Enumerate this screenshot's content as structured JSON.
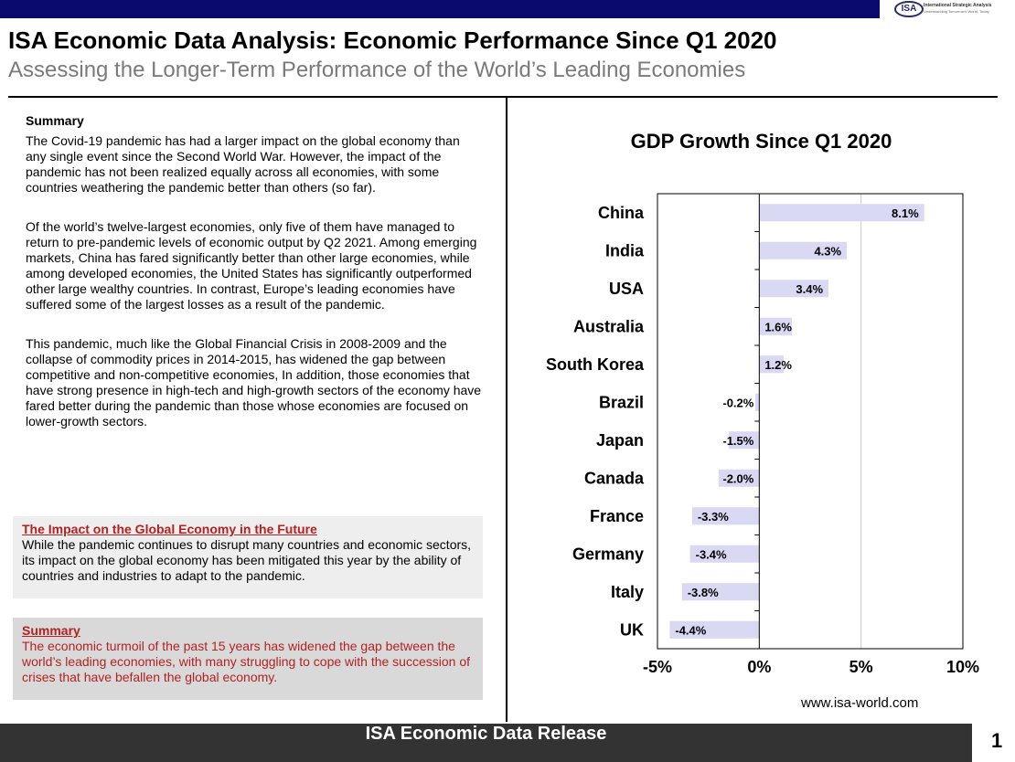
{
  "header": {
    "logo_text": "ISA",
    "logo_name": "International Strategic Analysis",
    "logo_tagline": "Understanding Tomorrow's World, Today"
  },
  "title": "ISA Economic Data Analysis: Economic Performance Since Q1 2020",
  "subtitle": "Assessing the Longer-Term Performance of the World’s Leading Economies",
  "summary": {
    "heading": "Summary",
    "paragraphs": [
      "The Covid-19 pandemic has had a larger impact on the global economy than any single event since the Second World War. However, the impact of the pandemic has not been realized equally across all economies, with some countries weathering the pandemic better than others (so far).",
      "Of the world’s twelve-largest economies, only five of them have managed to return to pre-pandemic levels of economic output by Q2 2021. Among emerging markets, China has fared significantly better than other large economies, while among developed economies, the United States has significantly outperformed other large wealthy countries. In contrast, Europe’s leading economies have suffered some of the largest losses as a result of the pandemic.",
      "This pandemic, much like the Global Financial Crisis in 2008-2009 and the collapse of commodity prices in 2014-2015, has widened the gap between competitive and non-competitive economies, In addition, those economies that have strong presence in high-tech and high-growth sectors of the economy have fared better during the pandemic than those whose economies are focused on lower-growth sectors."
    ]
  },
  "impact_box": {
    "heading": "The Impact on the Global Economy in the Future",
    "text": "While the pandemic continues to disrupt many countries and economic sectors, its impact on the global economy has been mitigated this year by the ability of countries and industries to adapt to the pandemic."
  },
  "summary_box": {
    "heading": "Summary",
    "text": "The economic turmoil of the past 15 years has widened the gap between the world’s leading economies, with many struggling to cope with the succession of crises that have befallen the global economy."
  },
  "chart_data": {
    "type": "bar",
    "orientation": "horizontal",
    "title": "GDP Growth Since Q1 2020",
    "categories": [
      "China",
      "India",
      "USA",
      "Australia",
      "South Korea",
      "Brazil",
      "Japan",
      "Canada",
      "France",
      "Germany",
      "Italy",
      "UK"
    ],
    "values": [
      8.1,
      4.3,
      3.4,
      1.6,
      1.2,
      -0.2,
      -1.5,
      -2.0,
      -3.3,
      -3.4,
      -3.8,
      -4.4
    ],
    "data_labels": [
      "8.1%",
      "4.3%",
      "3.4%",
      "1.6%",
      "1.2%",
      "-0.2%",
      "-1.5%",
      "-2.0%",
      "-3.3%",
      "-3.4%",
      "-3.8%",
      "-4.4%"
    ],
    "xlim": [
      -5,
      10
    ],
    "xticks": [
      -5,
      0,
      5,
      10
    ],
    "xtick_labels": [
      "-5%",
      "0%",
      "5%",
      "10%"
    ],
    "xlabel": "",
    "ylabel": "",
    "grid": "vertical",
    "bar_color": "#d9d9f3",
    "gridline_color": "#c8c8c8"
  },
  "source_url": "www.isa-world.com",
  "footer": {
    "text": "ISA Economic Data Release",
    "page_number": "1"
  }
}
